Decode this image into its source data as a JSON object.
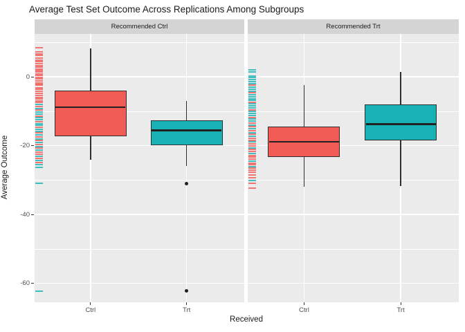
{
  "title": "Average Test Set Outcome Across Replications Among Subgroups",
  "x_axis_title": "Received",
  "y_axis_title": "Average Outcome",
  "colors": {
    "red": "#f15b55",
    "teal": "#18b2b6",
    "panel_bg": "#ebebeb",
    "strip_bg": "#d4d4d4",
    "grid": "#ffffff",
    "line": "#2e2e2e",
    "tick_label": "#4d4d4d"
  },
  "chart_data": {
    "type": "boxplot",
    "title": "Average Test Set Outcome Across Replications Among Subgroups",
    "xlabel": "Received",
    "ylabel": "Average Outcome",
    "x_categories": [
      "Ctrl",
      "Trt"
    ],
    "ylim": [
      -65.5,
      12.5
    ],
    "y_ticks_major": [
      0,
      -20,
      -40,
      -60
    ],
    "y_tick_labels": [
      "0",
      "-20",
      "-40",
      "-60"
    ],
    "y_ticks_minor": [
      10,
      -10,
      -30,
      -50
    ],
    "grid": "on",
    "legend": "none",
    "panels": [
      {
        "strip_label": "Recommended Ctrl",
        "boxes": [
          {
            "category": "Ctrl",
            "group": "Ctrl",
            "color": "red",
            "whisker_high": 8.3,
            "q3": -4.0,
            "median": -8.8,
            "q1": -17.2,
            "whisker_low": -24.0,
            "outliers": []
          },
          {
            "category": "Trt",
            "group": "Trt",
            "color": "teal",
            "whisker_high": -6.9,
            "q3": -12.6,
            "median": -15.6,
            "q1": -19.8,
            "whisker_low": -25.8,
            "outliers": [
              -31.0,
              -62.2
            ]
          }
        ],
        "rug": [
          [
            8.4,
            "r"
          ],
          [
            7.3,
            "r"
          ],
          [
            6.6,
            "r"
          ],
          [
            6.2,
            "r"
          ],
          [
            5.5,
            "r"
          ],
          [
            4.9,
            "r"
          ],
          [
            4.4,
            "r"
          ],
          [
            3.9,
            "r"
          ],
          [
            3.3,
            "r"
          ],
          [
            2.8,
            "r"
          ],
          [
            2.3,
            "r"
          ],
          [
            1.8,
            "r"
          ],
          [
            1.4,
            "r"
          ],
          [
            0.9,
            "r"
          ],
          [
            0.4,
            "r"
          ],
          [
            -0.1,
            "r"
          ],
          [
            -0.6,
            "r"
          ],
          [
            -1.1,
            "r"
          ],
          [
            -1.7,
            "r"
          ],
          [
            -2.1,
            "r"
          ],
          [
            -2.4,
            "r"
          ],
          [
            -3.1,
            "r"
          ],
          [
            -3.6,
            "r"
          ],
          [
            -4.2,
            "r"
          ],
          [
            -4.8,
            "r"
          ],
          [
            -5.4,
            "r"
          ],
          [
            -6.0,
            "r"
          ],
          [
            -6.4,
            "r"
          ],
          [
            -6.9,
            "r"
          ],
          [
            -7.5,
            "r"
          ],
          [
            -8.1,
            "t"
          ],
          [
            -8.6,
            "r"
          ],
          [
            -9.2,
            "t"
          ],
          [
            -9.7,
            "r"
          ],
          [
            -10.3,
            "t"
          ],
          [
            -10.8,
            "t"
          ],
          [
            -11.4,
            "r"
          ],
          [
            -11.9,
            "t"
          ],
          [
            -12.5,
            "t"
          ],
          [
            -13.0,
            "r"
          ],
          [
            -13.6,
            "t"
          ],
          [
            -14.1,
            "t"
          ],
          [
            -14.7,
            "r"
          ],
          [
            -15.2,
            "t"
          ],
          [
            -15.8,
            "t"
          ],
          [
            -16.3,
            "r"
          ],
          [
            -16.9,
            "t"
          ],
          [
            -17.4,
            "r"
          ],
          [
            -18.0,
            "t"
          ],
          [
            -18.5,
            "r"
          ],
          [
            -19.1,
            "t"
          ],
          [
            -19.6,
            "r"
          ],
          [
            -20.2,
            "t"
          ],
          [
            -20.7,
            "r"
          ],
          [
            -21.3,
            "t"
          ],
          [
            -21.9,
            "r"
          ],
          [
            -22.4,
            "r"
          ],
          [
            -23.0,
            "t"
          ],
          [
            -23.6,
            "r"
          ],
          [
            -24.2,
            "t"
          ],
          [
            -24.8,
            "r"
          ],
          [
            -25.5,
            "t"
          ],
          [
            -26.3,
            "t"
          ],
          [
            -31.0,
            "t"
          ],
          [
            -62.3,
            "t"
          ]
        ]
      },
      {
        "strip_label": "Recommended Trt",
        "boxes": [
          {
            "category": "Ctrl",
            "group": "Ctrl",
            "color": "red",
            "whisker_high": -2.3,
            "q3": -14.4,
            "median": -18.9,
            "q1": -23.2,
            "whisker_low": -31.9,
            "outliers": []
          },
          {
            "category": "Trt",
            "group": "Trt",
            "color": "teal",
            "whisker_high": 1.5,
            "q3": -8.1,
            "median": -13.7,
            "q1": -18.4,
            "whisker_low": -31.7,
            "outliers": []
          }
        ],
        "rug": [
          [
            2.1,
            "t"
          ],
          [
            1.5,
            "t"
          ],
          [
            0.3,
            "t"
          ],
          [
            -0.2,
            "t"
          ],
          [
            -0.8,
            "t"
          ],
          [
            -1.3,
            "t"
          ],
          [
            -1.9,
            "t"
          ],
          [
            -2.4,
            "r"
          ],
          [
            -3.0,
            "t"
          ],
          [
            -3.5,
            "t"
          ],
          [
            -4.1,
            "t"
          ],
          [
            -4.6,
            "r"
          ],
          [
            -5.2,
            "t"
          ],
          [
            -5.7,
            "t"
          ],
          [
            -6.3,
            "t"
          ],
          [
            -6.8,
            "t"
          ],
          [
            -7.4,
            "r"
          ],
          [
            -7.9,
            "t"
          ],
          [
            -8.5,
            "t"
          ],
          [
            -9.0,
            "t"
          ],
          [
            -9.6,
            "r"
          ],
          [
            -10.1,
            "t"
          ],
          [
            -10.7,
            "t"
          ],
          [
            -11.2,
            "t"
          ],
          [
            -11.8,
            "r"
          ],
          [
            -12.3,
            "t"
          ],
          [
            -12.9,
            "t"
          ],
          [
            -13.4,
            "r"
          ],
          [
            -14.0,
            "t"
          ],
          [
            -14.5,
            "r"
          ],
          [
            -15.1,
            "t"
          ],
          [
            -15.6,
            "r"
          ],
          [
            -16.2,
            "t"
          ],
          [
            -16.7,
            "r"
          ],
          [
            -17.3,
            "t"
          ],
          [
            -17.8,
            "r"
          ],
          [
            -18.4,
            "r"
          ],
          [
            -18.9,
            "t"
          ],
          [
            -19.5,
            "r"
          ],
          [
            -20.0,
            "r"
          ],
          [
            -20.6,
            "t"
          ],
          [
            -21.1,
            "r"
          ],
          [
            -21.7,
            "r"
          ],
          [
            -22.2,
            "t"
          ],
          [
            -22.8,
            "r"
          ],
          [
            -23.3,
            "r"
          ],
          [
            -23.9,
            "r"
          ],
          [
            -24.4,
            "t"
          ],
          [
            -25.0,
            "r"
          ],
          [
            -25.5,
            "r"
          ],
          [
            -26.1,
            "t"
          ],
          [
            -26.6,
            "r"
          ],
          [
            -27.2,
            "r"
          ],
          [
            -27.8,
            "r"
          ],
          [
            -28.6,
            "r"
          ],
          [
            -29.4,
            "r"
          ],
          [
            -30.2,
            "t"
          ],
          [
            -31.0,
            "r"
          ],
          [
            -32.3,
            "r"
          ]
        ]
      }
    ]
  }
}
